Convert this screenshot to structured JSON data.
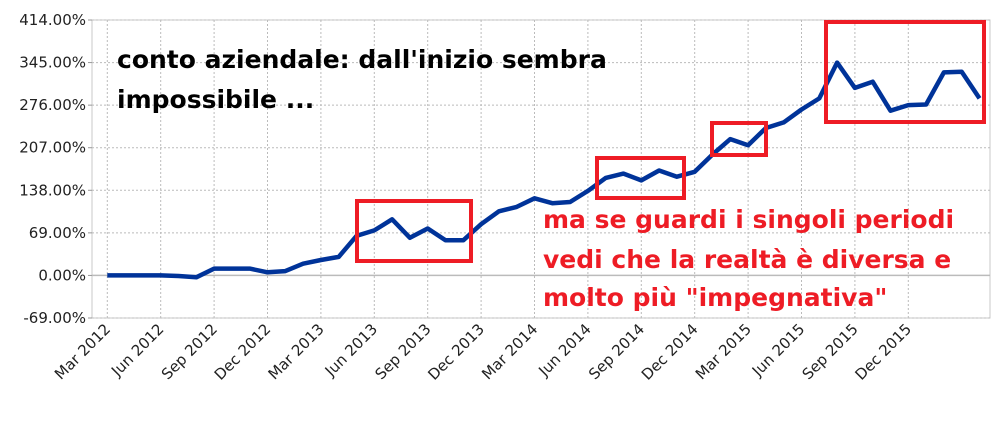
{
  "chart_data": {
    "type": "line",
    "title": "",
    "xlabel": "",
    "ylabel": "",
    "ylim": [
      -69,
      414
    ],
    "y_ticks": [
      "-69.00%",
      "0.00%",
      "69.00%",
      "138.00%",
      "207.00%",
      "276.00%",
      "345.00%",
      "414.00%"
    ],
    "x_ticks": [
      "Mar 2012",
      "Jun 2012",
      "Sep 2012",
      "Dec 2012",
      "Mar 2013",
      "Jun 2013",
      "Sep 2013",
      "Dec 2013",
      "Mar 2014",
      "Jun 2014",
      "Sep 2014",
      "Dec 2014",
      "Mar 2015",
      "Jun 2015",
      "Sep 2015",
      "Dec 2015"
    ],
    "grid": true,
    "line_color": "#003399",
    "annotation_color": "#ee1c25",
    "x": [
      "Mar 2012",
      "Apr 2012",
      "May 2012",
      "Jun 2012",
      "Jul 2012",
      "Aug 2012",
      "Sep 2012",
      "Oct 2012",
      "Nov 2012",
      "Dec 2012",
      "Jan 2013",
      "Feb 2013",
      "Mar 2013",
      "Apr 2013",
      "May 2013",
      "Jun 2013",
      "Jul 2013",
      "Aug 2013",
      "Sep 2013",
      "Oct 2013",
      "Nov 2013",
      "Dec 2013",
      "Jan 2014",
      "Feb 2014",
      "Mar 2014",
      "Apr 2014",
      "May 2014",
      "Jun 2014",
      "Jul 2014",
      "Aug 2014",
      "Sep 2014",
      "Oct 2014",
      "Nov 2014",
      "Dec 2014",
      "Jan 2015",
      "Feb 2015",
      "Mar 2015",
      "Apr 2015",
      "May 2015",
      "Jun 2015",
      "Jul 2015",
      "Aug 2015",
      "Sep 2015",
      "Oct 2015",
      "Nov 2015",
      "Dec 2015",
      "Jan 2016",
      "Feb 2016",
      "Mar 2016",
      "Apr 2016"
    ],
    "values": [
      0,
      0,
      0,
      0,
      -1,
      -3,
      11,
      11,
      11,
      5,
      7,
      19,
      25,
      30,
      64,
      73,
      91,
      61,
      76,
      57,
      57,
      83,
      104,
      111,
      125,
      117,
      119,
      137,
      158,
      165,
      154,
      170,
      160,
      168,
      196,
      221,
      211,
      239,
      248,
      269,
      287,
      345,
      304,
      314,
      267,
      276,
      277,
      329,
      330,
      287
    ],
    "annotations": {
      "title_lines": [
        "conto aziendale: dall'inizio sembra",
        "impossibile ..."
      ],
      "red_lines": [
        "ma se guardi i singoli periodi",
        "vedi che la realtà è diversa e",
        "molto più \"impegnativa\""
      ]
    }
  }
}
